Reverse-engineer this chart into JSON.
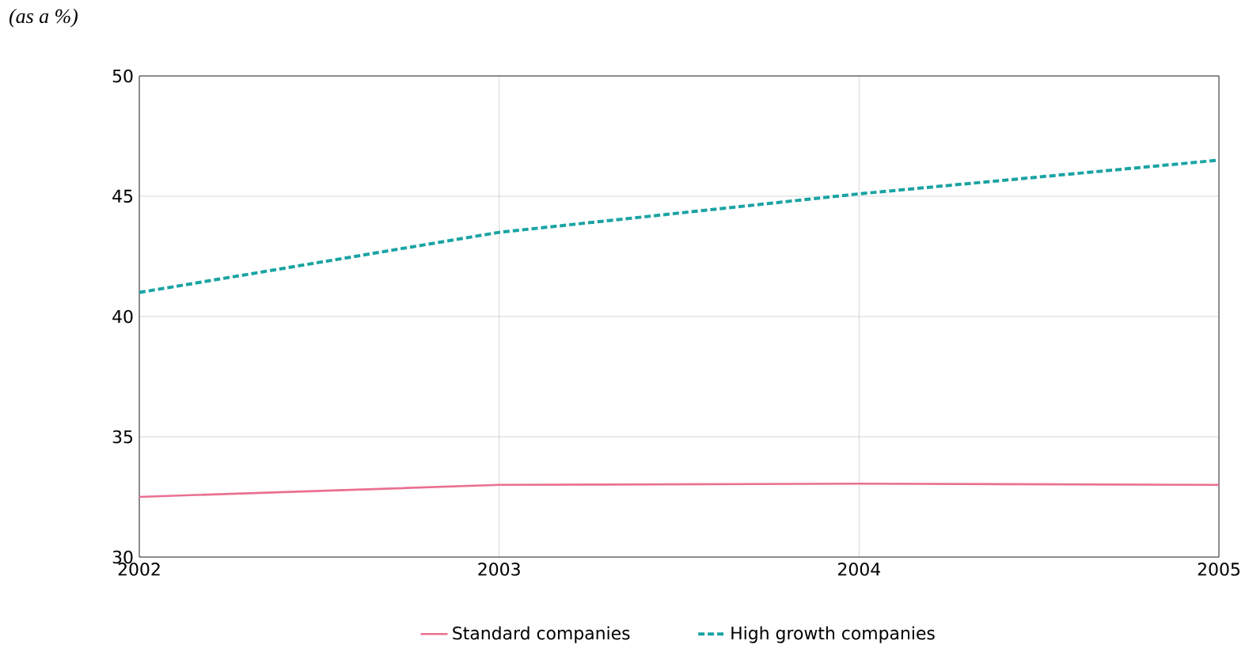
{
  "chart_data": {
    "type": "line",
    "ylabel": "(as a %)",
    "x": [
      2002,
      2003,
      2004,
      2005
    ],
    "series": [
      {
        "name": "Standard companies",
        "color": "#ea7090",
        "values": [
          32.5,
          33.0,
          33.05,
          33.0
        ],
        "line_style": "solid"
      },
      {
        "name": "High growth companies",
        "color": "#1aa3a3",
        "values": [
          41.0,
          43.5,
          45.1,
          46.5
        ],
        "line_style": "dashed"
      }
    ],
    "xlim": [
      2002,
      2005
    ],
    "xticks": [
      2002,
      2003,
      2004,
      2005
    ],
    "ylim": [
      30,
      50
    ],
    "yticks": [
      30,
      35,
      40,
      45,
      50
    ],
    "grid": true,
    "legend": "bottom",
    "marker": "none"
  }
}
